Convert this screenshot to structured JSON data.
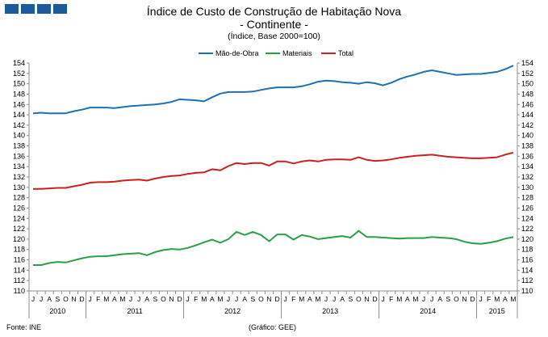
{
  "header": {
    "title_line1": "Índice de Custo de Construção de Habitação Nova",
    "title_line2": "- Continente -",
    "subtitle": "(Índice, Base 2000=100)"
  },
  "footer": {
    "source": "Fonte: INE",
    "credit": "(Gráfico: GEE)"
  },
  "colors": {
    "logo": "#1e5a99",
    "mao": "#1f6fb5",
    "materiais": "#27a046",
    "total": "#cc1f1f",
    "axis": "#8c8c8c"
  },
  "chart_data": {
    "type": "line",
    "title": "Índice de Custo de Construção de Habitação Nova - Continente -",
    "ylabel": "(Índice, Base 2000=100)",
    "ylim": [
      110,
      154
    ],
    "y_ticks": [
      110,
      112,
      114,
      116,
      118,
      120,
      122,
      124,
      126,
      128,
      130,
      132,
      134,
      136,
      138,
      140,
      142,
      144,
      146,
      148,
      150,
      152,
      154
    ],
    "months": [
      "J",
      "J",
      "A",
      "S",
      "O",
      "N",
      "D",
      "J",
      "F",
      "M",
      "A",
      "M",
      "J",
      "J",
      "A",
      "S",
      "O",
      "N",
      "D",
      "J",
      "F",
      "M",
      "A",
      "M",
      "J",
      "J",
      "A",
      "S",
      "O",
      "N",
      "D",
      "J",
      "F",
      "M",
      "A",
      "M",
      "J",
      "J",
      "A",
      "S",
      "O",
      "N",
      "D",
      "J",
      "F",
      "M",
      "A",
      "M",
      "J",
      "J",
      "A",
      "S",
      "O",
      "N",
      "D",
      "J",
      "F",
      "M",
      "A",
      "M"
    ],
    "years": [
      {
        "label": "2010",
        "start": 0,
        "count": 7
      },
      {
        "label": "2011",
        "start": 7,
        "count": 12
      },
      {
        "label": "2012",
        "start": 19,
        "count": 12
      },
      {
        "label": "2013",
        "start": 31,
        "count": 12
      },
      {
        "label": "2014",
        "start": 43,
        "count": 12
      },
      {
        "label": "2015",
        "start": 55,
        "count": 5
      }
    ],
    "legend": [
      "Mão-de-Obra",
      "Materiais",
      "Total"
    ],
    "series": [
      {
        "name": "Mão-de-Obra",
        "color": "#1f6fb5",
        "values": [
          144.3,
          144.4,
          144.3,
          144.3,
          144.3,
          144.7,
          145.0,
          145.4,
          145.4,
          145.4,
          145.3,
          145.5,
          145.7,
          145.8,
          145.9,
          146.0,
          146.2,
          146.5,
          147.0,
          146.9,
          146.8,
          146.6,
          147.4,
          148.1,
          148.4,
          148.4,
          148.4,
          148.5,
          148.8,
          149.1,
          149.3,
          149.3,
          149.3,
          149.5,
          149.9,
          150.4,
          150.6,
          150.5,
          150.3,
          150.2,
          150.0,
          150.3,
          150.1,
          149.7,
          150.2,
          150.9,
          151.4,
          151.8,
          152.3,
          152.6,
          152.3,
          152.0,
          151.7,
          151.8,
          151.9,
          151.9,
          152.1,
          152.3,
          152.8,
          153.5
        ]
      },
      {
        "name": "Materiais",
        "color": "#27a046",
        "values": [
          115.0,
          115.0,
          115.4,
          115.6,
          115.5,
          115.9,
          116.3,
          116.6,
          116.7,
          116.7,
          116.9,
          117.1,
          117.2,
          117.3,
          116.9,
          117.5,
          117.9,
          118.1,
          118.0,
          118.3,
          118.8,
          119.4,
          119.9,
          119.3,
          120.0,
          121.4,
          120.8,
          121.4,
          120.8,
          119.6,
          120.9,
          120.9,
          119.9,
          120.8,
          120.5,
          120.0,
          120.2,
          120.4,
          120.6,
          120.3,
          121.6,
          120.4,
          120.4,
          120.3,
          120.2,
          120.1,
          120.2,
          120.2,
          120.2,
          120.4,
          120.3,
          120.2,
          120.0,
          119.5,
          119.2,
          119.1,
          119.3,
          119.6,
          120.1,
          120.4
        ]
      },
      {
        "name": "Total",
        "color": "#cc1f1f",
        "values": [
          129.7,
          129.7,
          129.8,
          129.9,
          129.9,
          130.2,
          130.5,
          130.9,
          131.0,
          131.0,
          131.1,
          131.3,
          131.4,
          131.5,
          131.3,
          131.7,
          132.0,
          132.2,
          132.3,
          132.6,
          132.8,
          132.9,
          133.5,
          133.3,
          134.1,
          134.7,
          134.5,
          134.7,
          134.7,
          134.2,
          135.0,
          135.0,
          134.6,
          135.0,
          135.2,
          135.0,
          135.3,
          135.4,
          135.4,
          135.3,
          135.8,
          135.3,
          135.1,
          135.2,
          135.4,
          135.7,
          135.9,
          136.1,
          136.2,
          136.3,
          136.1,
          135.9,
          135.8,
          135.7,
          135.6,
          135.6,
          135.7,
          135.8,
          136.3,
          136.7
        ]
      }
    ]
  }
}
